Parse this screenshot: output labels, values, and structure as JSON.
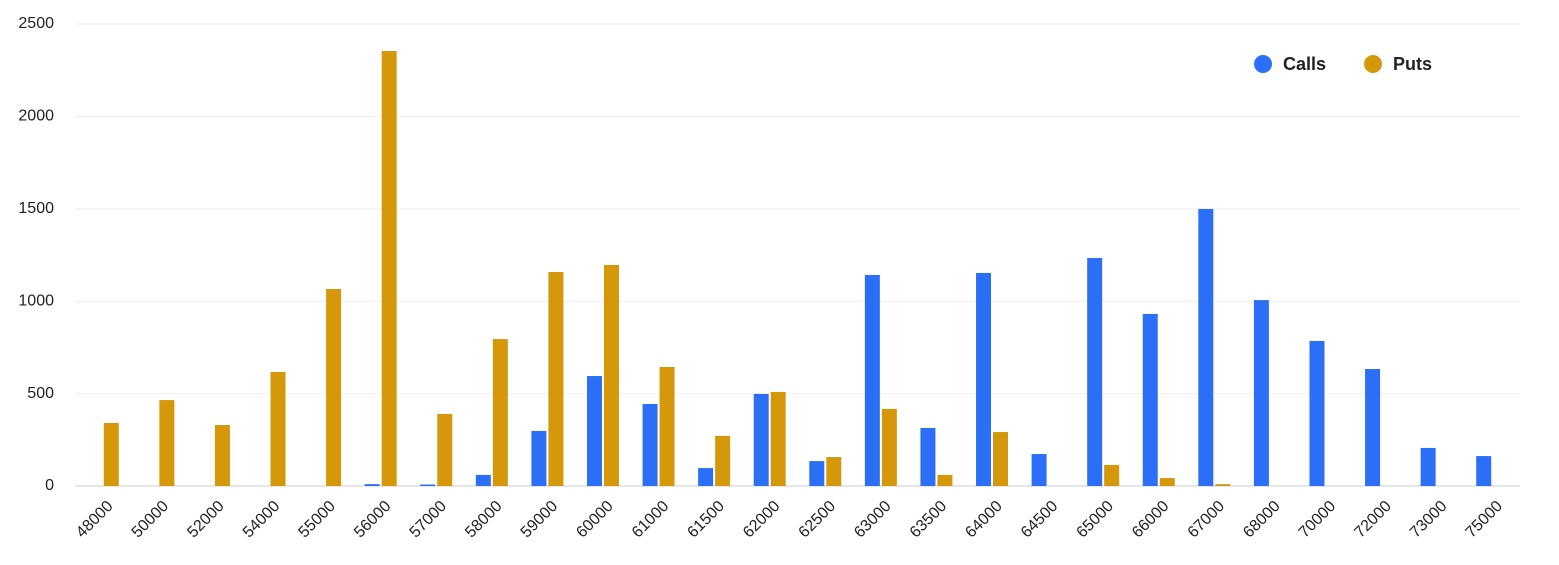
{
  "chart_data": {
    "type": "bar",
    "categories": [
      "48000",
      "50000",
      "52000",
      "54000",
      "55000",
      "56000",
      "57000",
      "58000",
      "59000",
      "60000",
      "61000",
      "61500",
      "62000",
      "62500",
      "63000",
      "63500",
      "64000",
      "64500",
      "65000",
      "66000",
      "67000",
      "68000",
      "70000",
      "72000",
      "73000",
      "75000"
    ],
    "series": [
      {
        "name": "Calls",
        "color": "#2b6ff6",
        "values": [
          0,
          0,
          0,
          0,
          0,
          10,
          8,
          60,
          298,
          595,
          444,
          97,
          498,
          135,
          1142,
          314,
          1153,
          173,
          1234,
          931,
          1499,
          1006,
          785,
          633,
          206,
          162
        ]
      },
      {
        "name": "Puts",
        "color": "#d4980a",
        "values": [
          341,
          465,
          330,
          617,
          1066,
          2354,
          390,
          795,
          1158,
          1196,
          644,
          271,
          509,
          157,
          417,
          60,
          292,
          0,
          114,
          43,
          10,
          0,
          0,
          0,
          0,
          0
        ]
      }
    ],
    "ylim": [
      0,
      2500
    ],
    "yticks": [
      0,
      500,
      1000,
      1500,
      2000,
      2500
    ],
    "grid": true,
    "legend": "top-right"
  }
}
